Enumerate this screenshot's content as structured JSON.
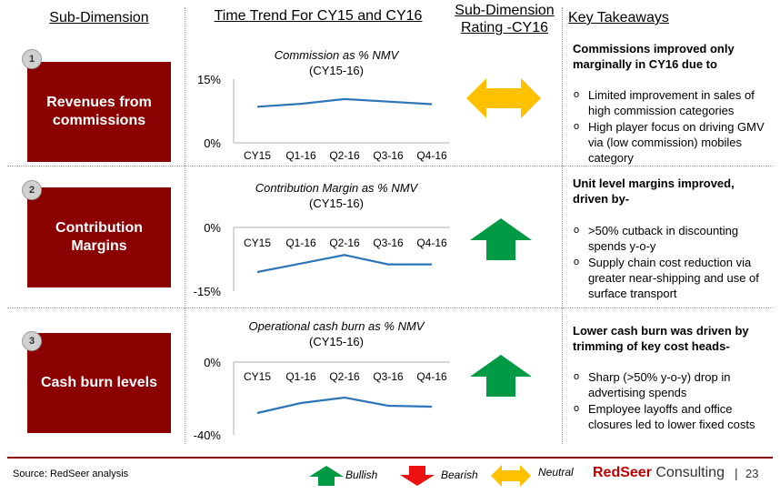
{
  "headers": {
    "sub_dimension": "Sub-Dimension",
    "time_trend": "Time Trend For CY15 and CY16",
    "rating_line1": "Sub-Dimension",
    "rating_line2": "Rating -CY16",
    "takeaways": "Key Takeaways"
  },
  "rows": [
    {
      "number": "1",
      "label_line1": "Revenues from",
      "label_line2": "commissions",
      "rating": "neutral",
      "takeaway_head": "Commissions improved only marginally in CY16 due to",
      "bullets": [
        "Limited improvement in sales of high commission categories",
        "High player focus on driving GMV via (low commission) mobiles category"
      ]
    },
    {
      "number": "2",
      "label_line1": "Contribution",
      "label_line2": "Margins",
      "rating": "bullish",
      "takeaway_head": "Unit level margins improved, driven by-",
      "bullets": [
        ">50% cutback in discounting spends y-o-y",
        "Supply chain cost reduction via greater near-shipping and use of surface transport"
      ]
    },
    {
      "number": "3",
      "label_line1": "Cash burn levels",
      "label_line2": "",
      "rating": "bullish",
      "takeaway_head": "Lower cash burn was driven by trimming of key cost heads-",
      "bullets": [
        "Sharp (>50% y-o-y)  drop in advertising spends",
        "Employee layoffs and office closures led to lower fixed costs"
      ]
    }
  ],
  "chart_data": [
    {
      "type": "line",
      "title_line1": "Commission as % NMV",
      "title_line2": "(CY15-16)",
      "categories": [
        "CY15",
        "Q1-16",
        "Q2-16",
        "Q3-16",
        "Q4-16"
      ],
      "values": [
        8.5,
        9.2,
        10.3,
        9.7,
        9.1
      ],
      "ylim": [
        0,
        15
      ],
      "ytick_labels": [
        "15%",
        "0%"
      ],
      "color": "#2e75b6"
    },
    {
      "type": "line",
      "title_line1": "Contribution Margin as % NMV",
      "title_line2": "(CY15-16)",
      "categories": [
        "CY15",
        "Q1-16",
        "Q2-16",
        "Q3-16",
        "Q4-16"
      ],
      "values": [
        -10.5,
        -8.5,
        -6.5,
        -8.7,
        -8.7
      ],
      "ylim": [
        -15,
        0
      ],
      "ytick_labels": [
        "0%",
        "-15%"
      ],
      "color": "#2e75b6"
    },
    {
      "type": "line",
      "title_line1": "Operational cash burn as % NMV",
      "title_line2": "(CY15-16)",
      "categories": [
        "CY15",
        "Q1-16",
        "Q2-16",
        "Q3-16",
        "Q4-16"
      ],
      "values": [
        -28,
        -22.5,
        -19.5,
        -24,
        -24.5
      ],
      "ylim": [
        -40,
        0
      ],
      "ytick_labels": [
        "0%",
        "-40%"
      ],
      "color": "#2e75b6"
    }
  ],
  "legend": {
    "bullish": "Bullish",
    "bearish": "Bearish",
    "neutral": "Neutral"
  },
  "colors": {
    "dim_box": "#8b0000",
    "bullish": "#009944",
    "bearish": "#ee1111",
    "neutral": "#ffc000"
  },
  "footer": {
    "source": "Source: RedSeer analysis",
    "brand_red": "RedSeer",
    "brand_rest": " Consulting",
    "separator": "|",
    "page": "23"
  }
}
